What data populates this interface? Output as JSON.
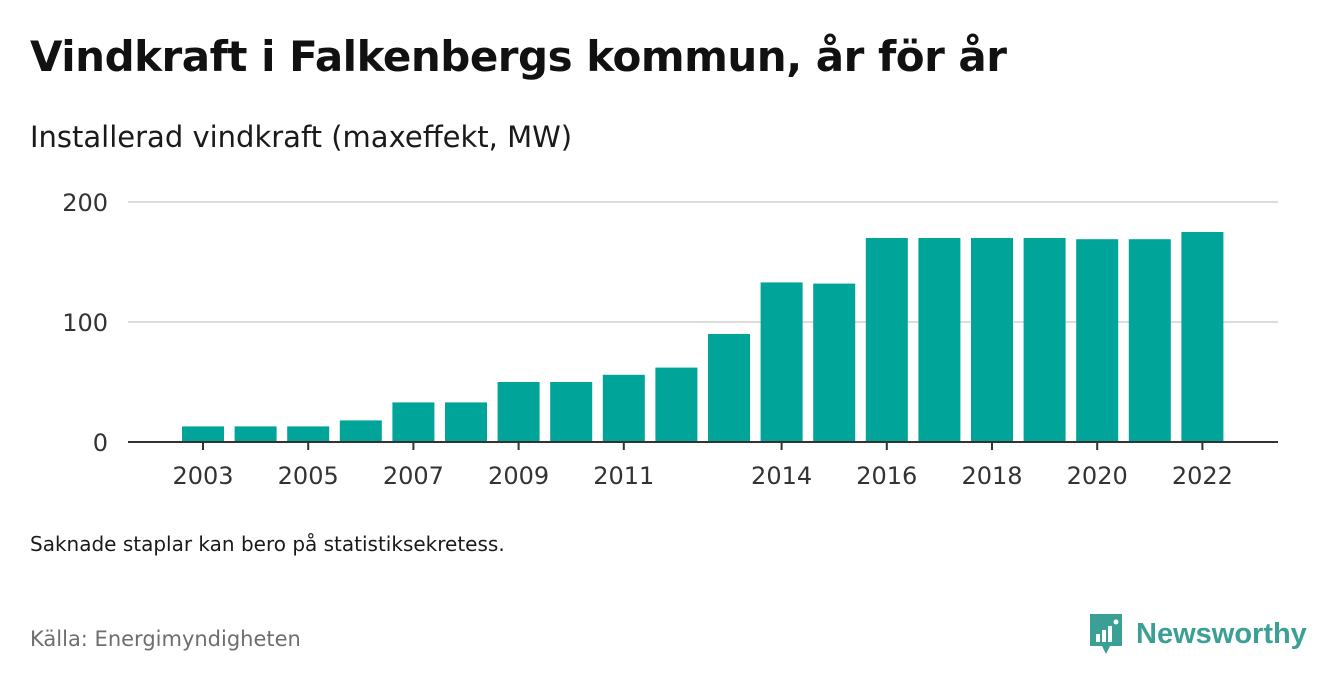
{
  "title": "Vindkraft i Falkenbergs kommun, år för år",
  "subtitle": "Installerad vindkraft (maxeffekt, MW)",
  "note": "Saknade staplar kan bero på statistiksekretess.",
  "source": "Källa: Energimyndigheten",
  "brand": {
    "name": "Newsworthy",
    "icon": "newsworthy-logo-icon"
  },
  "colors": {
    "bar": "#00a499",
    "grid": "#dcdcdc",
    "axis": "#333333",
    "brand": "#3a9f94"
  },
  "chart_data": {
    "type": "bar",
    "x": [
      2003,
      2004,
      2005,
      2006,
      2007,
      2008,
      2009,
      2010,
      2011,
      2012,
      2013,
      2014,
      2015,
      2016,
      2017,
      2018,
      2019,
      2020,
      2021,
      2022
    ],
    "values": [
      13,
      13,
      13,
      18,
      33,
      33,
      50,
      50,
      56,
      62,
      90,
      133,
      132,
      170,
      170,
      170,
      170,
      169,
      169,
      175
    ],
    "ylim": [
      0,
      200
    ],
    "yticks": [
      0,
      100,
      200
    ],
    "xtick_labels": [
      "2003",
      "2005",
      "2007",
      "2009",
      "2011",
      "2014",
      "2016",
      "2018",
      "2020",
      "2022"
    ],
    "grid": true,
    "xlabel": "",
    "ylabel": ""
  }
}
